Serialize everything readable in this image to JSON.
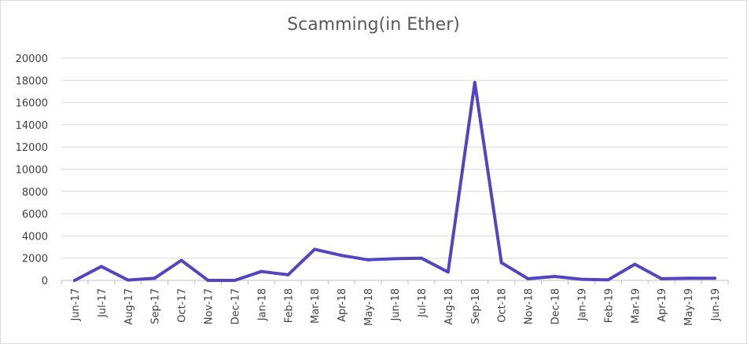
{
  "chart_data": {
    "type": "line",
    "title": "Scamming(in Ether)",
    "xlabel": "",
    "ylabel": "",
    "ylim": [
      0,
      20000
    ],
    "yticks": [
      0,
      2000,
      4000,
      6000,
      8000,
      10000,
      12000,
      14000,
      16000,
      18000,
      20000
    ],
    "grid": true,
    "legend": "none",
    "categories": [
      "Jun-17",
      "Jul-17",
      "Aug-17",
      "Sep-17",
      "Oct-17",
      "Nov-17",
      "Dec-17",
      "Jan-18",
      "Feb-18",
      "Mar-18",
      "Apr-18",
      "May-18",
      "Jun-18",
      "Jul-18",
      "Aug-18",
      "Sep-18",
      "Oct-18",
      "Nov-18",
      "Dec-18",
      "Jan-19",
      "Feb-19",
      "Mar-19",
      "Apr-19",
      "May-19",
      "Jun-19"
    ],
    "series": [
      {
        "color": "#4f46c0",
        "values": [
          0,
          1250,
          30,
          200,
          1800,
          0,
          0,
          800,
          500,
          2800,
          2250,
          1850,
          1950,
          2000,
          750,
          17800,
          1600,
          150,
          350,
          100,
          50,
          1450,
          150,
          200,
          200
        ]
      }
    ]
  }
}
